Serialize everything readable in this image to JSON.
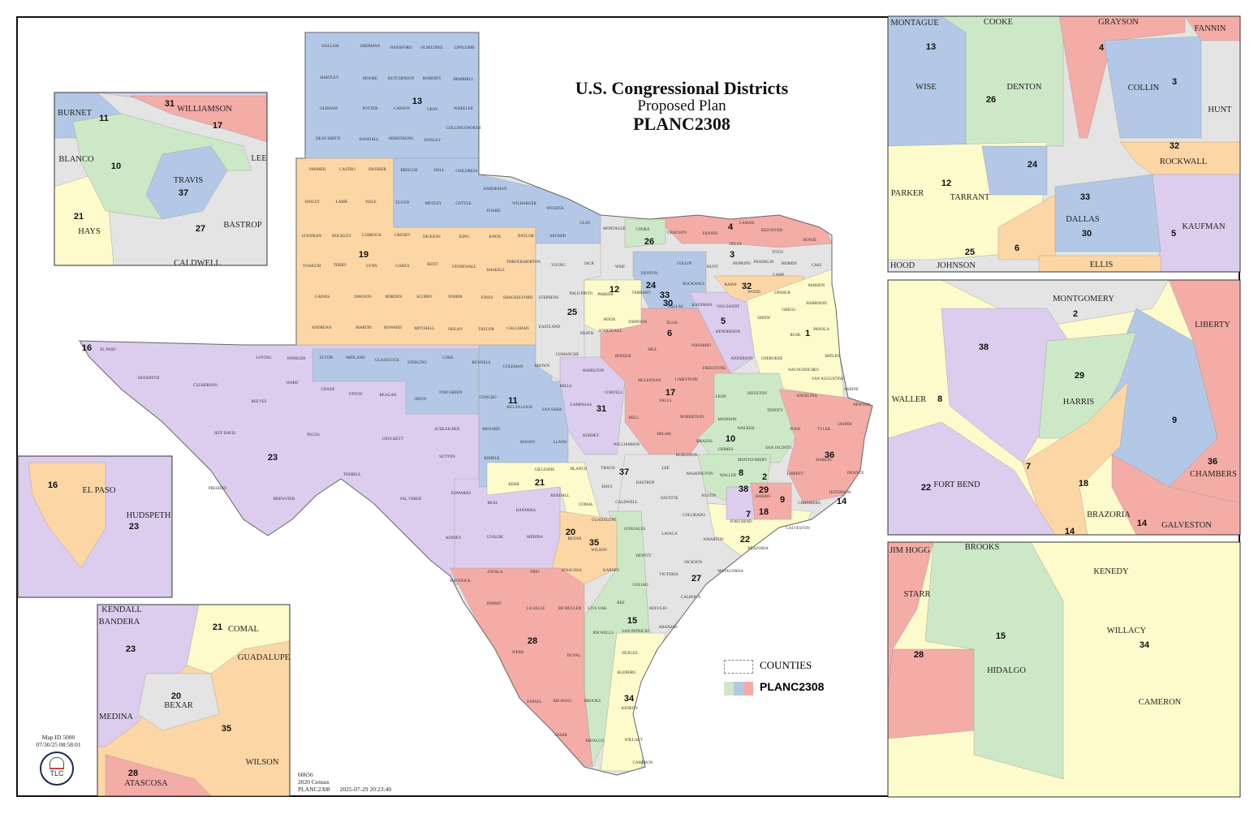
{
  "title": {
    "line1": "U.S. Congressional Districts",
    "line2": "Proposed Plan",
    "line3": "PLANC2308"
  },
  "legend": {
    "counties_label": "COUNTIES",
    "plan_label": "PLANC2308"
  },
  "map_meta": {
    "map_id": "Map ID 5000",
    "map_time": "07/30/25 08:58:01",
    "logo_text": "TLC"
  },
  "footer": {
    "code": "60656",
    "census": "2020 Census",
    "plan": "PLANC2308",
    "timestamp": "2025-07-29 20:23:40"
  },
  "palette": {
    "blue": "#b3c8e6",
    "green": "#cde8c6",
    "pink": "#f4aca6",
    "orange": "#fcd7a5",
    "purple": "#dccdee",
    "yellow": "#fdfbcb",
    "gray": "#e4e4e4"
  },
  "main_map": {
    "district_labels": [
      "13",
      "19",
      "16",
      "23",
      "11",
      "25",
      "26",
      "4",
      "3",
      "12",
      "24",
      "33",
      "30",
      "32",
      "5",
      "6",
      "1",
      "17",
      "31",
      "10",
      "36",
      "37",
      "21",
      "8",
      "2",
      "38",
      "29",
      "9",
      "7",
      "18",
      "14",
      "22",
      "20",
      "35",
      "27",
      "15",
      "28",
      "34"
    ],
    "county_labels": [
      "DALLAM",
      "SHERMAN",
      "HANSFORD",
      "OCHILTREE",
      "LIPSCOMB",
      "HARTLEY",
      "MOORE",
      "HUTCHINSON",
      "ROBERTS",
      "HEMPHILL",
      "OLDHAM",
      "POTTER",
      "CARSON",
      "GRAY",
      "WHEELER",
      "COLLINGSWORTH",
      "DEAF SMITH",
      "RANDALL",
      "ARMSTRONG",
      "DONLEY",
      "PARMER",
      "CASTRO",
      "SWISHER",
      "BRISCOE",
      "HALL",
      "CHILDRESS",
      "BAILEY",
      "LAMB",
      "HALE",
      "FLOYD",
      "MOTLEY",
      "COTTLE",
      "HARDEMAN",
      "FOARD",
      "WILBARGER",
      "WICHITA",
      "CLAY",
      "MONTAGUE",
      "COOKE",
      "GRAYSON",
      "FANNIN",
      "LAMAR",
      "RED RIVER",
      "BOWIE",
      "COCHRAN",
      "HOCKLEY",
      "LUBBOCK",
      "CROSBY",
      "DICKENS",
      "KING",
      "KNOX",
      "BAYLOR",
      "ARCHER",
      "JACK",
      "WISE",
      "DENTON",
      "COLLIN",
      "HUNT",
      "HOPKINS",
      "FRANKLIN",
      "TITUS",
      "MORRIS",
      "CASS",
      "DELTA",
      "CAMP",
      "YOAKUM",
      "TERRY",
      "LYNN",
      "GARZA",
      "KENT",
      "STONEWALL",
      "HASKELL",
      "THROCKMORTON",
      "YOUNG",
      "GAINES",
      "DAWSON",
      "BORDEN",
      "SCURRY",
      "FISHER",
      "JONES",
      "SHACKELFORD",
      "STEPHENS",
      "PALO PINTO",
      "PARKER",
      "TARRANT",
      "DALLAS",
      "ROCKWALL",
      "KAUFMAN",
      "VAN ZANDT",
      "RAINS",
      "WOOD",
      "UPSHUR",
      "MARION",
      "HARRISON",
      "GREGG",
      "SMITH",
      "RUSK",
      "PANOLA",
      "ANDREWS",
      "MARTIN",
      "HOWARD",
      "MITCHELL",
      "NOLAN",
      "TAYLOR",
      "CALLAHAN",
      "EASTLAND",
      "ERATH",
      "HOOD",
      "SOMERVELL",
      "JOHNSON",
      "ELLIS",
      "HENDERSON",
      "NAVARRO",
      "ANDERSON",
      "CHEROKEE",
      "SHELBY",
      "NACOGDOCHES",
      "SAN AUGUSTINE",
      "SABINE",
      "EL PASO",
      "LOVING",
      "WINKLER",
      "ECTOR",
      "MIDLAND",
      "GLASSCOCK",
      "STERLING",
      "COKE",
      "RUNNELS",
      "COLEMAN",
      "BROWN",
      "COMANCHE",
      "HAMILTON",
      "BOSQUE",
      "HILL",
      "MCLENNAN",
      "LIMESTONE",
      "FREESTONE",
      "LEON",
      "HOUSTON",
      "ANGELINA",
      "TRINITY",
      "POLK",
      "TYLER",
      "JASPER",
      "NEWTON",
      "HUDSPETH",
      "CULBERSON",
      "WARD",
      "CRANE",
      "UPTON",
      "REAGAN",
      "IRION",
      "TOM GREEN",
      "CONCHO",
      "MCCULLOCH",
      "SAN SABA",
      "MILLS",
      "LAMPASAS",
      "CORYELL",
      "BELL",
      "FALLS",
      "ROBERTSON",
      "MILAM",
      "BRAZOS",
      "MADISON",
      "WALKER",
      "GRIMES",
      "SAN JACINTO",
      "MONTGOMERY",
      "LIBERTY",
      "HARDIN",
      "ORANGE",
      "JEFFERSON",
      "CHAMBERS",
      "HARRIS",
      "REEVES",
      "JEFF DAVIS",
      "PECOS",
      "CROCKETT",
      "SCHLEICHER",
      "SUTTON",
      "MENARD",
      "KIMBLE",
      "MASON",
      "LLANO",
      "BURNET",
      "WILLIAMSON",
      "TRAVIS",
      "LEE",
      "BURLESON",
      "WASHINGTON",
      "WALLER",
      "AUSTIN",
      "FORT BEND",
      "BRAZORIA",
      "GALVESTON",
      "WHARTON",
      "MATAGORDA",
      "COLORADO",
      "FAYETTE",
      "BASTROP",
      "CALDWELL",
      "HAYS",
      "BLANCO",
      "GILLESPIE",
      "KERR",
      "KENDALL",
      "COMAL",
      "BANDERA",
      "REAL",
      "EDWARDS",
      "VAL VERDE",
      "TERRELL",
      "BREWSTER",
      "PRESIDIO",
      "GUADALUPE",
      "GONZALES",
      "LAVACA",
      "BEXAR",
      "WILSON",
      "DEWITT",
      "JACKSON",
      "VICTORIA",
      "CALHOUN",
      "KINNEY",
      "UVALDE",
      "MEDINA",
      "ATASCOSA",
      "KARNES",
      "GOLIAD",
      "REFUGIO",
      "BEE",
      "ARANSAS",
      "SAN PATRICIO",
      "ZAVALA",
      "FRIO",
      "MAVERICK",
      "DIMMIT",
      "LA SALLE",
      "MCMULLEN",
      "LIVE OAK",
      "JIM WELLS",
      "NUECES",
      "KLEBERG",
      "WEBB",
      "DUVAL",
      "KENEDY",
      "ZAPATA",
      "JIM HOGG",
      "BROOKS",
      "STARR",
      "HIDALGO",
      "WILLACY",
      "CAMERON"
    ]
  },
  "insets": [
    {
      "name": "austin",
      "labels": [
        "BURNET",
        "11",
        "31",
        "WILLIAMSON",
        "17",
        "BLANCO",
        "10",
        "TRAVIS",
        "37",
        "LEE",
        "21",
        "HAYS",
        "27",
        "BASTROP",
        "CALDWELL"
      ]
    },
    {
      "name": "el-paso",
      "labels": [
        "16",
        "EL PASO",
        "HUDSPETH",
        "23"
      ]
    },
    {
      "name": "san-antonio",
      "labels": [
        "KENDALL",
        "BANDERA",
        "21",
        "COMAL",
        "GUADALUPE",
        "23",
        "20",
        "BEXAR",
        "35",
        "MEDINA",
        "WILSON",
        "28",
        "ATASCOSA"
      ]
    },
    {
      "name": "dallas-fort-worth",
      "labels": [
        "MONTAGUE",
        "COOKE",
        "GRAYSON",
        "FANNIN",
        "13",
        "4",
        "3",
        "WISE",
        "DENTON",
        "26",
        "COLLIN",
        "HUNT",
        "32",
        "ROCKWALL",
        "24",
        "PARKER",
        "12",
        "TARRANT",
        "33",
        "DALLAS",
        "30",
        "KAUFMAN",
        "5",
        "25",
        "6",
        "HOOD",
        "JOHNSON",
        "ELLIS"
      ]
    },
    {
      "name": "houston",
      "labels": [
        "MONTGOMERY",
        "2",
        "LIBERTY",
        "38",
        "29",
        "HARRIS",
        "WALLER",
        "8",
        "9",
        "36",
        "CHAMBERS",
        "7",
        "22",
        "FORT BEND",
        "18",
        "BRAZORIA",
        "14",
        "14",
        "GALVESTON"
      ]
    },
    {
      "name": "rio-grande-valley",
      "labels": [
        "JIM HOGG",
        "BROOKS",
        "KENEDY",
        "STARR",
        "15",
        "WILLACY",
        "34",
        "28",
        "HIDALGO",
        "CAMERON"
      ]
    }
  ]
}
